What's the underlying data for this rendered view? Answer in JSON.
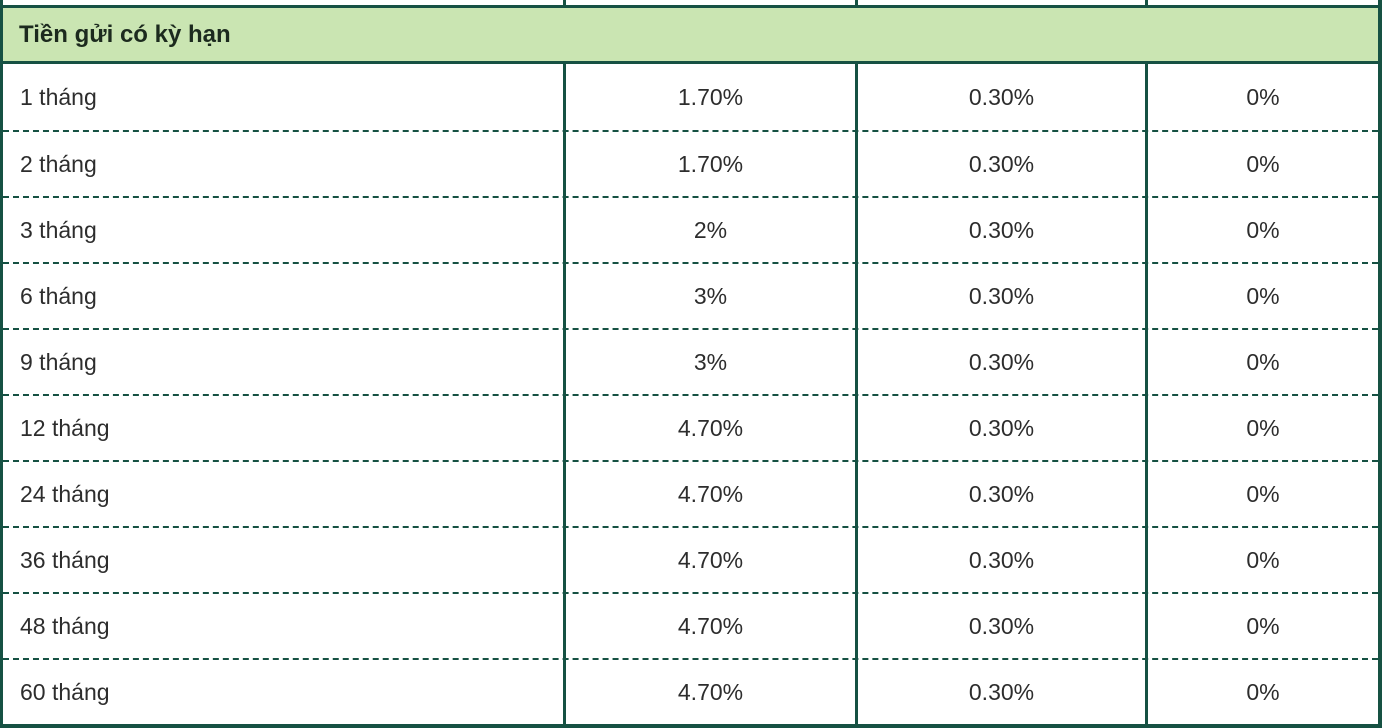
{
  "table": {
    "section_header": "Tiền gửi có kỳ hạn",
    "rows": [
      {
        "term": "1 tháng",
        "rates": [
          "1.70%",
          "0.30%",
          "0%"
        ]
      },
      {
        "term": "2 tháng",
        "rates": [
          "1.70%",
          "0.30%",
          "0%"
        ]
      },
      {
        "term": "3 tháng",
        "rates": [
          "2%",
          "0.30%",
          "0%"
        ]
      },
      {
        "term": "6 tháng",
        "rates": [
          "3%",
          "0.30%",
          "0%"
        ]
      },
      {
        "term": "9 tháng",
        "rates": [
          "3%",
          "0.30%",
          "0%"
        ]
      },
      {
        "term": "12 tháng",
        "rates": [
          "4.70%",
          "0.30%",
          "0%"
        ]
      },
      {
        "term": "24 tháng",
        "rates": [
          "4.70%",
          "0.30%",
          "0%"
        ]
      },
      {
        "term": "36 tháng",
        "rates": [
          "4.70%",
          "0.30%",
          "0%"
        ]
      },
      {
        "term": "48 tháng",
        "rates": [
          "4.70%",
          "0.30%",
          "0%"
        ]
      },
      {
        "term": "60 tháng",
        "rates": [
          "4.70%",
          "0.30%",
          "0%"
        ]
      }
    ]
  },
  "colors": {
    "border": "#165143",
    "header_bg": "#cae5b2",
    "header_text": "#1c2a1e",
    "cell_text": "#2d2d2d",
    "background": "#ffffff"
  }
}
